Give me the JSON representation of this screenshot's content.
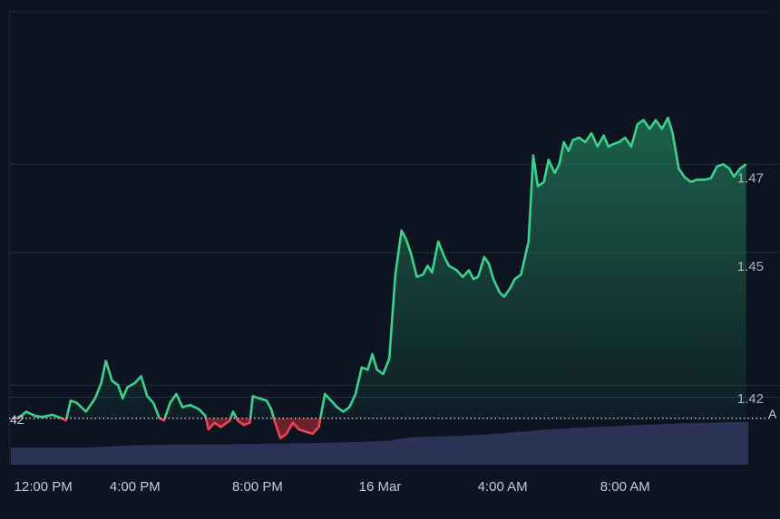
{
  "chart_data": {
    "type": "area",
    "title": "",
    "xlabel": "",
    "ylabel": "",
    "baseline": 1.4125,
    "ylim": [
      1.402,
      1.5045
    ],
    "y_ticks": [
      "1.42",
      "1.45",
      "1.47"
    ],
    "x_ticks": [
      "12:00 PM",
      "4:00 PM",
      "8:00 PM",
      "16 Mar",
      "4:00 AM",
      "8:00 AM"
    ],
    "x_tick_hours": [
      0,
      4,
      8,
      12,
      16,
      20
    ],
    "x_range_hours": [
      -0.05,
      24.7
    ],
    "volume_left_label": "42",
    "volume_right_label": "A",
    "colors": {
      "background": "#0d1421",
      "up_line": "#3bd28b",
      "down_line": "#ef4352",
      "up_fill_top": "#1f6e52",
      "down_fill": "#7a2430",
      "grid": "#26313f",
      "volume_bar": "#2b3457",
      "baseline_dots": "#cfd4dd"
    },
    "price_series": [
      [
        0.0,
        1.4125
      ],
      [
        0.2,
        1.4125
      ],
      [
        0.45,
        1.414
      ],
      [
        0.75,
        1.413
      ],
      [
        1.0,
        1.4128
      ],
      [
        1.3,
        1.4133
      ],
      [
        1.6,
        1.4125
      ],
      [
        1.75,
        1.412
      ],
      [
        1.9,
        1.4165
      ],
      [
        2.1,
        1.416
      ],
      [
        2.4,
        1.414
      ],
      [
        2.7,
        1.417
      ],
      [
        2.9,
        1.4205
      ],
      [
        3.05,
        1.4255
      ],
      [
        3.25,
        1.421
      ],
      [
        3.45,
        1.42
      ],
      [
        3.6,
        1.417
      ],
      [
        3.75,
        1.4195
      ],
      [
        4.0,
        1.4205
      ],
      [
        4.2,
        1.422
      ],
      [
        4.4,
        1.4175
      ],
      [
        4.6,
        1.416
      ],
      [
        4.8,
        1.4125
      ],
      [
        4.95,
        1.412
      ],
      [
        5.15,
        1.416
      ],
      [
        5.35,
        1.418
      ],
      [
        5.55,
        1.415
      ],
      [
        5.8,
        1.4155
      ],
      [
        6.1,
        1.4145
      ],
      [
        6.3,
        1.413
      ],
      [
        6.4,
        1.41
      ],
      [
        6.6,
        1.4115
      ],
      [
        6.8,
        1.4105
      ],
      [
        7.1,
        1.412
      ],
      [
        7.2,
        1.414
      ],
      [
        7.35,
        1.412
      ],
      [
        7.55,
        1.411
      ],
      [
        7.75,
        1.4115
      ],
      [
        7.85,
        1.4175
      ],
      [
        8.05,
        1.417
      ],
      [
        8.3,
        1.4165
      ],
      [
        8.45,
        1.4145
      ],
      [
        8.55,
        1.412
      ],
      [
        8.75,
        1.408
      ],
      [
        8.95,
        1.409
      ],
      [
        9.15,
        1.4115
      ],
      [
        9.35,
        1.41
      ],
      [
        9.55,
        1.4095
      ],
      [
        9.8,
        1.409
      ],
      [
        10.0,
        1.4105
      ],
      [
        10.2,
        1.418
      ],
      [
        10.4,
        1.4165
      ],
      [
        10.6,
        1.415
      ],
      [
        10.8,
        1.414
      ],
      [
        11.0,
        1.415
      ],
      [
        11.2,
        1.418
      ],
      [
        11.4,
        1.424
      ],
      [
        11.6,
        1.4235
      ],
      [
        11.75,
        1.427
      ],
      [
        11.9,
        1.4235
      ],
      [
        12.1,
        1.4225
      ],
      [
        12.3,
        1.426
      ],
      [
        12.5,
        1.445
      ],
      [
        12.7,
        1.455
      ],
      [
        12.85,
        1.453
      ],
      [
        13.0,
        1.45
      ],
      [
        13.2,
        1.4445
      ],
      [
        13.4,
        1.445
      ],
      [
        13.55,
        1.447
      ],
      [
        13.7,
        1.4455
      ],
      [
        13.9,
        1.4525
      ],
      [
        14.1,
        1.449
      ],
      [
        14.25,
        1.447
      ],
      [
        14.5,
        1.446
      ],
      [
        14.7,
        1.4445
      ],
      [
        14.9,
        1.446
      ],
      [
        15.05,
        1.444
      ],
      [
        15.2,
        1.4445
      ],
      [
        15.4,
        1.449
      ],
      [
        15.55,
        1.4475
      ],
      [
        15.7,
        1.444
      ],
      [
        15.9,
        1.441
      ],
      [
        16.05,
        1.44
      ],
      [
        16.25,
        1.442
      ],
      [
        16.4,
        1.444
      ],
      [
        16.6,
        1.445
      ],
      [
        16.85,
        1.4525
      ],
      [
        17.0,
        1.472
      ],
      [
        17.15,
        1.465
      ],
      [
        17.35,
        1.466
      ],
      [
        17.5,
        1.471
      ],
      [
        17.7,
        1.468
      ],
      [
        17.85,
        1.47
      ],
      [
        18.0,
        1.475
      ],
      [
        18.15,
        1.473
      ],
      [
        18.3,
        1.4755
      ],
      [
        18.5,
        1.476
      ],
      [
        18.7,
        1.475
      ],
      [
        18.9,
        1.477
      ],
      [
        19.1,
        1.474
      ],
      [
        19.3,
        1.4765
      ],
      [
        19.45,
        1.474
      ],
      [
        19.6,
        1.4745
      ],
      [
        19.8,
        1.475
      ],
      [
        20.0,
        1.476
      ],
      [
        20.2,
        1.474
      ],
      [
        20.4,
        1.479
      ],
      [
        20.6,
        1.48
      ],
      [
        20.8,
        1.478
      ],
      [
        21.0,
        1.48
      ],
      [
        21.2,
        1.478
      ],
      [
        21.4,
        1.4805
      ],
      [
        21.55,
        1.477
      ],
      [
        21.75,
        1.469
      ],
      [
        21.95,
        1.467
      ],
      [
        22.15,
        1.466
      ],
      [
        22.35,
        1.4665
      ],
      [
        22.6,
        1.4665
      ],
      [
        22.8,
        1.4668
      ],
      [
        23.0,
        1.4695
      ],
      [
        23.2,
        1.47
      ],
      [
        23.4,
        1.469
      ],
      [
        23.55,
        1.4672
      ],
      [
        23.75,
        1.469
      ],
      [
        23.95,
        1.47
      ]
    ],
    "volume_series": {
      "x_hours": [
        0,
        1,
        2,
        2.8,
        3.3,
        3.6,
        4.0,
        5.0,
        6.2,
        7.6,
        9.0,
        10.5,
        12.3,
        12.7,
        13.2,
        14.5,
        15.5,
        17.5,
        19.0,
        21.0,
        22.5,
        23.95
      ],
      "values": [
        25,
        25,
        25,
        25.4,
        27,
        28,
        28.6,
        29.2,
        29.8,
        30.4,
        31.2,
        32.5,
        35,
        38.7,
        40.5,
        42.3,
        44.5,
        51.7,
        55.5,
        59.5,
        61.5,
        63
      ]
    },
    "volume_max": 100
  }
}
